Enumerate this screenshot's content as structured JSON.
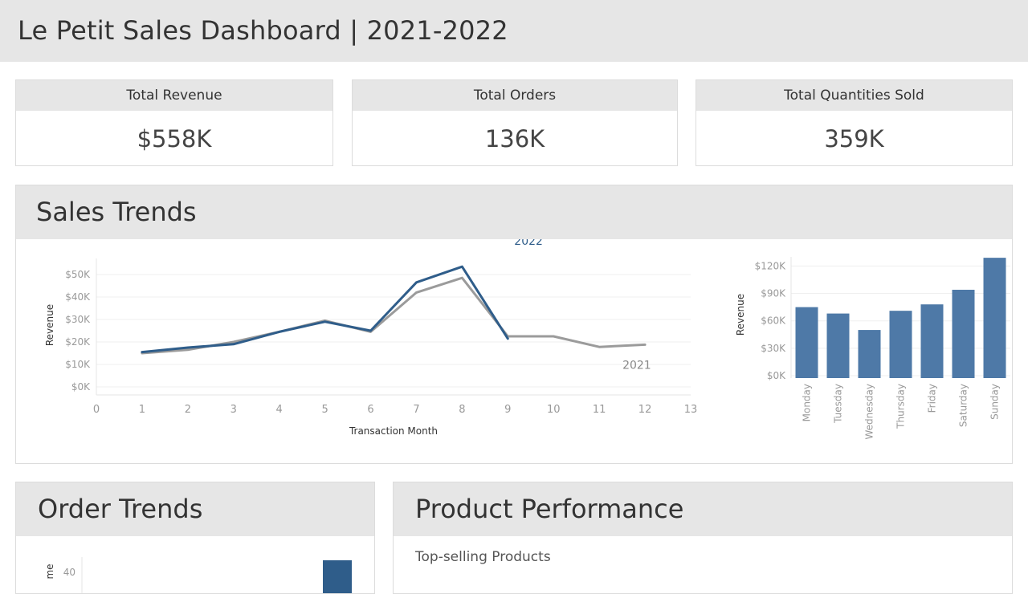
{
  "dashboard": {
    "title": "Le Petit Sales Dashboard | 2021-2022"
  },
  "kpis": [
    {
      "label": "Total Revenue",
      "value": "$558K"
    },
    {
      "label": "Total Orders",
      "value": "136K"
    },
    {
      "label": "Total Quantities Sold",
      "value": "359K"
    }
  ],
  "sales_trends": {
    "title": "Sales Trends"
  },
  "order_trends": {
    "title": "Order Trends"
  },
  "product_performance": {
    "title": "Product Performance",
    "subtitle": "Top-selling Products"
  },
  "colors": {
    "series_2022": "#2f5d8a",
    "series_2021": "#9b9b9b",
    "bar": "#4e79a7",
    "header_bg": "#e6e6e6"
  },
  "chart_data": [
    {
      "type": "line",
      "xlabel": "Transaction Month",
      "ylabel": "Revenue",
      "x_ticks": [
        0,
        1,
        2,
        3,
        4,
        5,
        6,
        7,
        8,
        9,
        10,
        11,
        12,
        13
      ],
      "y_ticks": [
        "$0K",
        "$10K",
        "$20K",
        "$30K",
        "$40K",
        "$50K"
      ],
      "y_tick_values": [
        0,
        10000,
        20000,
        30000,
        40000,
        50000
      ],
      "xlim": [
        0,
        13
      ],
      "ylim": [
        0,
        55000
      ],
      "grid": true,
      "series": [
        {
          "name": "2022",
          "x": [
            1,
            2,
            3,
            4,
            5,
            6,
            7,
            8,
            9
          ],
          "values": [
            15500,
            17500,
            19000,
            24500,
            29000,
            25000,
            46500,
            53500,
            21500
          ]
        },
        {
          "name": "2021",
          "x": [
            1,
            2,
            3,
            4,
            5,
            6,
            7,
            8,
            9,
            10,
            11,
            12
          ],
          "values": [
            15000,
            16500,
            20000,
            24500,
            29500,
            24500,
            42000,
            48500,
            22500,
            22500,
            17800,
            18800
          ]
        }
      ]
    },
    {
      "type": "bar",
      "ylabel": "Revenue",
      "categories": [
        "Monday",
        "Tuesday",
        "Wednesday",
        "Thursday",
        "Friday",
        "Saturday",
        "Sunday"
      ],
      "values": [
        75000,
        68000,
        50000,
        71000,
        78000,
        94000,
        129000
      ],
      "y_ticks": [
        "$0K",
        "$30K",
        "$60K",
        "$90K",
        "$120K"
      ],
      "y_tick_values": [
        0,
        30000,
        60000,
        90000,
        120000
      ],
      "ylim": [
        0,
        130000
      ],
      "grid": true
    },
    {
      "type": "bar",
      "ylabel": "me",
      "y_ticks": [
        "40"
      ],
      "y_tick_values": [
        40
      ]
    }
  ]
}
